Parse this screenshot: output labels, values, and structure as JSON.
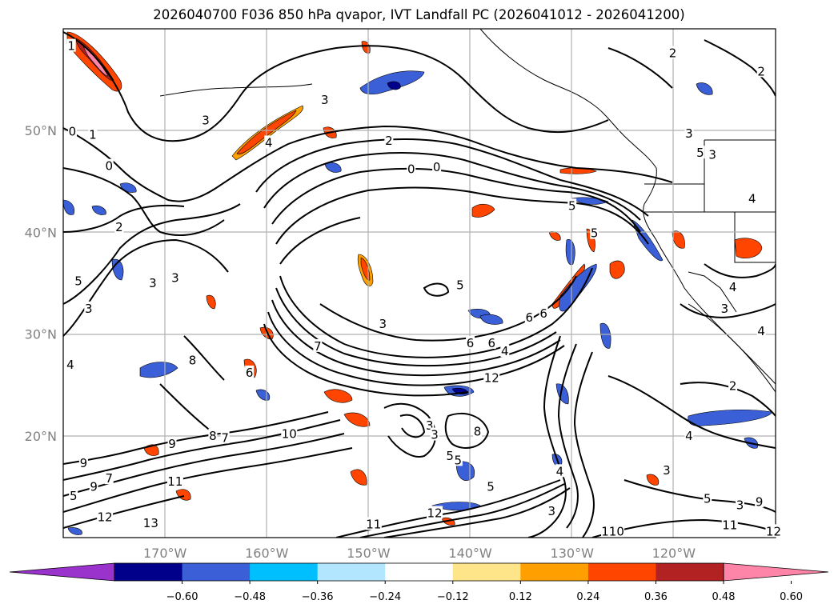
{
  "title": "2026040700 F036 850 hPa qvapor, IVT Landfall PC (2026041012 - 2026041200)",
  "map": {
    "lon_range": [
      -180,
      -110
    ],
    "lat_range": [
      10,
      60
    ],
    "lat_ticks": [
      {
        "value": 50,
        "label": "50°N"
      },
      {
        "value": 40,
        "label": "40°N"
      },
      {
        "value": 30,
        "label": "30°N"
      },
      {
        "value": 20,
        "label": "20°N"
      }
    ],
    "lon_ticks": [
      {
        "value": -170,
        "label": "170°W"
      },
      {
        "value": -160,
        "label": "160°W"
      },
      {
        "value": -150,
        "label": "150°W"
      },
      {
        "value": -140,
        "label": "140°W"
      },
      {
        "value": -130,
        "label": "130°W"
      },
      {
        "value": -120,
        "label": "120°W"
      }
    ],
    "contour_labels": [
      {
        "text": "1",
        "lon": -179.2,
        "lat": 58.3
      },
      {
        "text": "0",
        "lon": -179.1,
        "lat": 49.9
      },
      {
        "text": "1",
        "lon": -177.1,
        "lat": 49.6
      },
      {
        "text": "0",
        "lon": -175.5,
        "lat": 46.5
      },
      {
        "text": "2",
        "lon": -174.5,
        "lat": 40.5
      },
      {
        "text": "3",
        "lon": -166.0,
        "lat": 51.0
      },
      {
        "text": "3",
        "lon": -154.3,
        "lat": 53.0
      },
      {
        "text": "4",
        "lon": -159.8,
        "lat": 48.8
      },
      {
        "text": "2",
        "lon": -148.0,
        "lat": 49.0
      },
      {
        "text": "0",
        "lon": -145.8,
        "lat": 46.2
      },
      {
        "text": "0",
        "lon": -143.3,
        "lat": 46.4
      },
      {
        "text": "2",
        "lon": -120.1,
        "lat": 57.6
      },
      {
        "text": "2",
        "lon": -111.4,
        "lat": 55.8
      },
      {
        "text": "3",
        "lon": -118.5,
        "lat": 49.7
      },
      {
        "text": "5",
        "lon": -117.4,
        "lat": 47.8
      },
      {
        "text": "3",
        "lon": -116.2,
        "lat": 47.6
      },
      {
        "text": "4",
        "lon": -112.3,
        "lat": 43.3
      },
      {
        "text": "5",
        "lon": -130.0,
        "lat": 42.6
      },
      {
        "text": "5",
        "lon": -127.8,
        "lat": 39.9
      },
      {
        "text": "3",
        "lon": -177.5,
        "lat": 32.5
      },
      {
        "text": "5",
        "lon": -178.5,
        "lat": 35.2
      },
      {
        "text": "3",
        "lon": -171.2,
        "lat": 35.0
      },
      {
        "text": "3",
        "lon": -169.0,
        "lat": 35.5
      },
      {
        "text": "7",
        "lon": -155.0,
        "lat": 28.8
      },
      {
        "text": "3",
        "lon": -148.6,
        "lat": 31.0
      },
      {
        "text": "5",
        "lon": -141.0,
        "lat": 34.8
      },
      {
        "text": "6",
        "lon": -140.0,
        "lat": 29.1
      },
      {
        "text": "6",
        "lon": -137.9,
        "lat": 29.1
      },
      {
        "text": "6",
        "lon": -134.2,
        "lat": 31.6
      },
      {
        "text": "6",
        "lon": -132.8,
        "lat": 32.0
      },
      {
        "text": "4",
        "lon": -136.6,
        "lat": 28.3
      },
      {
        "text": "12",
        "lon": -137.9,
        "lat": 25.7
      },
      {
        "text": "6",
        "lon": -161.7,
        "lat": 26.2
      },
      {
        "text": "8",
        "lon": -167.3,
        "lat": 27.4
      },
      {
        "text": "4",
        "lon": -179.3,
        "lat": 27.0
      },
      {
        "text": "7",
        "lon": -164.1,
        "lat": 19.8
      },
      {
        "text": "8",
        "lon": -165.3,
        "lat": 20.0
      },
      {
        "text": "10",
        "lon": -157.8,
        "lat": 20.2
      },
      {
        "text": "9",
        "lon": -169.3,
        "lat": 19.2
      },
      {
        "text": "9",
        "lon": -178.0,
        "lat": 17.3
      },
      {
        "text": "7",
        "lon": -175.5,
        "lat": 15.8
      },
      {
        "text": "9",
        "lon": -177.0,
        "lat": 15.0
      },
      {
        "text": "5",
        "lon": -179.0,
        "lat": 14.1
      },
      {
        "text": "11",
        "lon": -169.0,
        "lat": 15.5
      },
      {
        "text": "12",
        "lon": -175.9,
        "lat": 12.0
      },
      {
        "text": "13",
        "lon": -171.4,
        "lat": 11.4
      },
      {
        "text": "3",
        "lon": -144.0,
        "lat": 21.0
      },
      {
        "text": "5",
        "lon": -142.0,
        "lat": 18.0
      },
      {
        "text": "3",
        "lon": -143.5,
        "lat": 20.1
      },
      {
        "text": "8",
        "lon": -139.3,
        "lat": 20.4
      },
      {
        "text": "5",
        "lon": -141.2,
        "lat": 17.6
      },
      {
        "text": "5",
        "lon": -138.0,
        "lat": 15.0
      },
      {
        "text": "11",
        "lon": -149.5,
        "lat": 11.3
      },
      {
        "text": "12",
        "lon": -143.5,
        "lat": 12.4
      },
      {
        "text": "3",
        "lon": -132.0,
        "lat": 12.6
      },
      {
        "text": "4",
        "lon": -131.2,
        "lat": 16.5
      },
      {
        "text": "4",
        "lon": -118.5,
        "lat": 20.0
      },
      {
        "text": "3",
        "lon": -120.7,
        "lat": 16.6
      },
      {
        "text": "110",
        "lon": -126.0,
        "lat": 10.6
      },
      {
        "text": "11",
        "lon": -114.5,
        "lat": 11.2
      },
      {
        "text": "12",
        "lon": -110.2,
        "lat": 10.6
      },
      {
        "text": "5",
        "lon": -116.7,
        "lat": 13.8
      },
      {
        "text": "9",
        "lon": -111.6,
        "lat": 13.5
      },
      {
        "text": "3",
        "lon": -113.5,
        "lat": 13.2
      },
      {
        "text": "2",
        "lon": -114.2,
        "lat": 24.9
      },
      {
        "text": "4",
        "lon": -111.4,
        "lat": 30.3
      },
      {
        "text": "3",
        "lon": -115.0,
        "lat": 32.5
      },
      {
        "text": "4",
        "lon": -114.2,
        "lat": 34.6
      }
    ]
  },
  "colorbar": {
    "colors": [
      "#9933cc",
      "#00008b",
      "#3b5fd6",
      "#00bfff",
      "#b2e6ff",
      "#ffffff",
      "#ffe58a",
      "#ffa000",
      "#ff4500",
      "#b22222",
      "#ff85a8"
    ],
    "ticks": [
      "−0.60",
      "−0.48",
      "−0.36",
      "−0.24",
      "−0.12",
      "0.12",
      "0.24",
      "0.36",
      "0.48",
      "0.60"
    ]
  }
}
